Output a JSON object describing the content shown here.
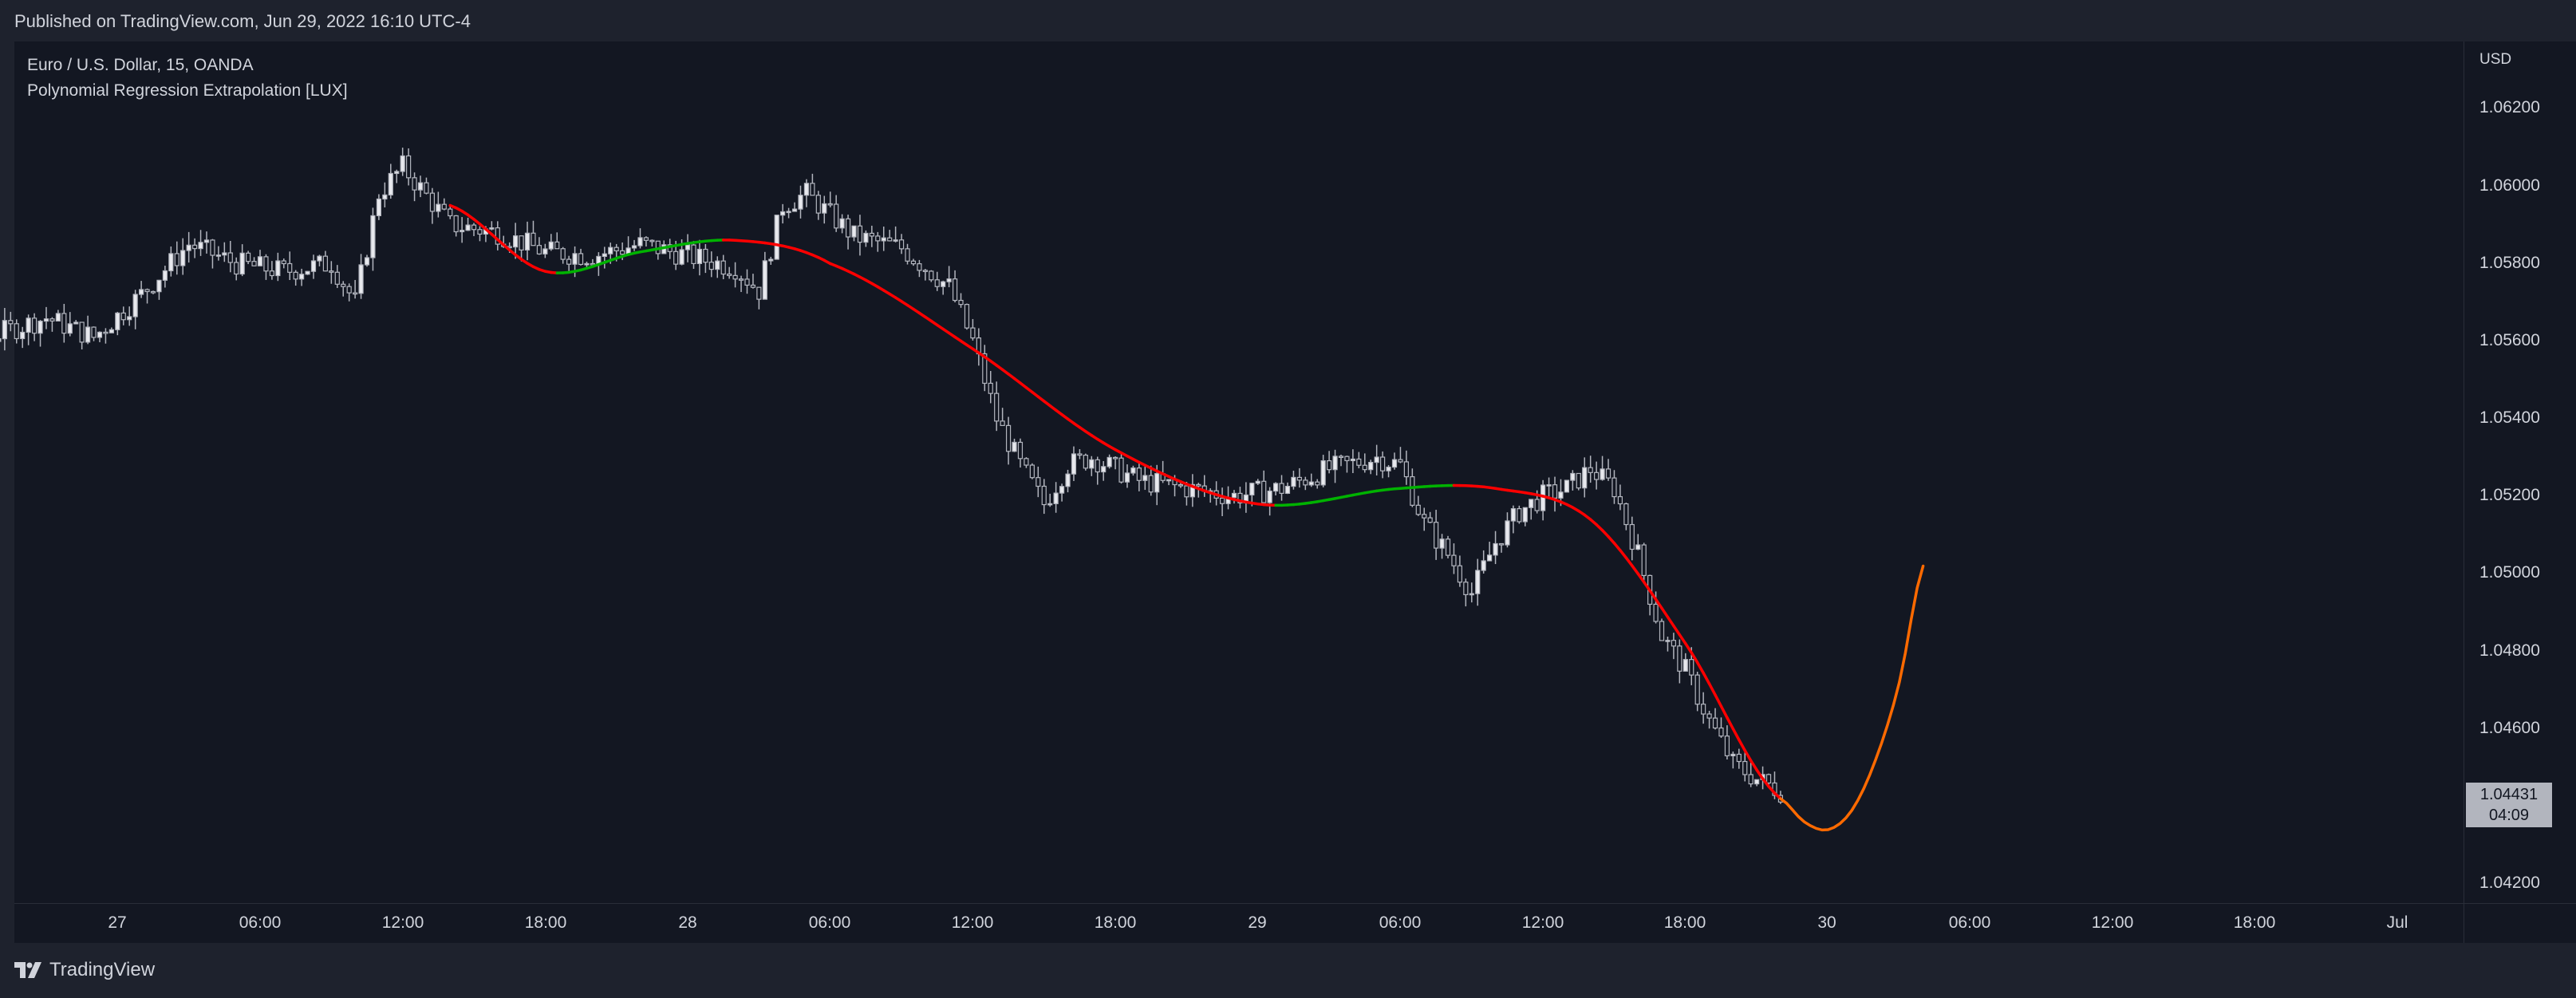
{
  "header": {
    "published": "Published on TradingView.com, Jun 29, 2022 16:10 UTC-4"
  },
  "legend": {
    "symbol_line": "Euro / U.S. Dollar, 15, OANDA",
    "indicator_line": "Polynomial Regression Extrapolation [LUX]"
  },
  "price_axis": {
    "currency": "USD",
    "ticks": [
      "1.06200",
      "1.06000",
      "1.05800",
      "1.05600",
      "1.05400",
      "1.05200",
      "1.05000",
      "1.04800",
      "1.04600",
      "1.04200"
    ]
  },
  "time_axis": {
    "ticks": [
      "27",
      "06:00",
      "12:00",
      "18:00",
      "28",
      "06:00",
      "12:00",
      "18:00",
      "29",
      "06:00",
      "12:00",
      "18:00",
      "30",
      "06:00",
      "12:00",
      "18:00",
      "Jul"
    ]
  },
  "last_price": {
    "price": "1.04431",
    "countdown": "04:09"
  },
  "footer": {
    "brand": "TradingView"
  },
  "colors": {
    "background": "#131722",
    "frame": "#1e222d",
    "text": "#d1d4dc",
    "candle": "#b2b5be",
    "regression_down": "#ff0000",
    "regression_up": "#00b200",
    "extrapolation": "#ff6a00"
  },
  "chart_data": {
    "type": "candlestick",
    "symbol": "EURUSD",
    "interval": "15",
    "ylim": [
      1.0415,
      1.0635
    ],
    "x_range_hours": [
      -11,
      84
    ],
    "candle_samples": [
      [
        -11,
        1.0571
      ],
      [
        -9,
        1.0562
      ],
      [
        -7,
        1.0558
      ],
      [
        -5,
        1.0562
      ],
      [
        -3,
        1.0566
      ],
      [
        -1,
        1.0561
      ],
      [
        1,
        1.0572
      ],
      [
        3,
        1.0585
      ],
      [
        5,
        1.058
      ],
      [
        7,
        1.0578
      ],
      [
        9,
        1.058
      ],
      [
        10,
        1.057
      ],
      [
        11,
        1.0598
      ],
      [
        12,
        1.0605
      ],
      [
        14,
        1.059
      ],
      [
        16,
        1.0588
      ],
      [
        18,
        1.0583
      ],
      [
        20,
        1.0582
      ],
      [
        22,
        1.0585
      ],
      [
        24,
        1.0582
      ],
      [
        26,
        1.0579
      ],
      [
        27,
        1.0573
      ],
      [
        28,
        1.0595
      ],
      [
        29,
        1.0598
      ],
      [
        31,
        1.0587
      ],
      [
        33,
        1.0584
      ],
      [
        35,
        1.0574
      ],
      [
        36,
        1.056
      ],
      [
        37,
        1.054
      ],
      [
        38,
        1.0528
      ],
      [
        39,
        1.0518
      ],
      [
        40,
        1.0528
      ],
      [
        41,
        1.053
      ],
      [
        43,
        1.0524
      ],
      [
        45,
        1.0522
      ],
      [
        47,
        1.052
      ],
      [
        49,
        1.0522
      ],
      [
        51,
        1.0527
      ],
      [
        53,
        1.053
      ],
      [
        54,
        1.0528
      ],
      [
        55,
        1.0513
      ],
      [
        56,
        1.0505
      ],
      [
        57,
        1.0495
      ],
      [
        58,
        1.0508
      ],
      [
        59,
        1.0516
      ],
      [
        60,
        1.052
      ],
      [
        61,
        1.0522
      ],
      [
        62,
        1.0527
      ],
      [
        63,
        1.0522
      ],
      [
        64,
        1.0505
      ],
      [
        65,
        1.0484
      ],
      [
        66,
        1.0475
      ],
      [
        67,
        1.0462
      ],
      [
        68,
        1.0451
      ],
      [
        69,
        1.0447
      ],
      [
        70,
        1.0444
      ]
    ],
    "regression": [
      [
        14,
        1.0595
      ],
      [
        18,
        1.0578
      ],
      [
        22,
        1.0583
      ],
      [
        26,
        1.0586
      ],
      [
        30,
        1.058
      ],
      [
        36,
        1.0558
      ],
      [
        42,
        1.0532
      ],
      [
        48,
        1.0518
      ],
      [
        54,
        1.0522
      ],
      [
        58,
        1.0522
      ],
      [
        62,
        1.0514
      ],
      [
        66,
        1.0482
      ],
      [
        70,
        1.0442
      ]
    ],
    "extrapolation": [
      [
        70,
        1.0442
      ],
      [
        71,
        1.0436
      ],
      [
        72,
        1.0434
      ],
      [
        73,
        1.0439
      ],
      [
        74,
        1.0452
      ],
      [
        75,
        1.0472
      ],
      [
        76,
        1.0502
      ]
    ]
  }
}
